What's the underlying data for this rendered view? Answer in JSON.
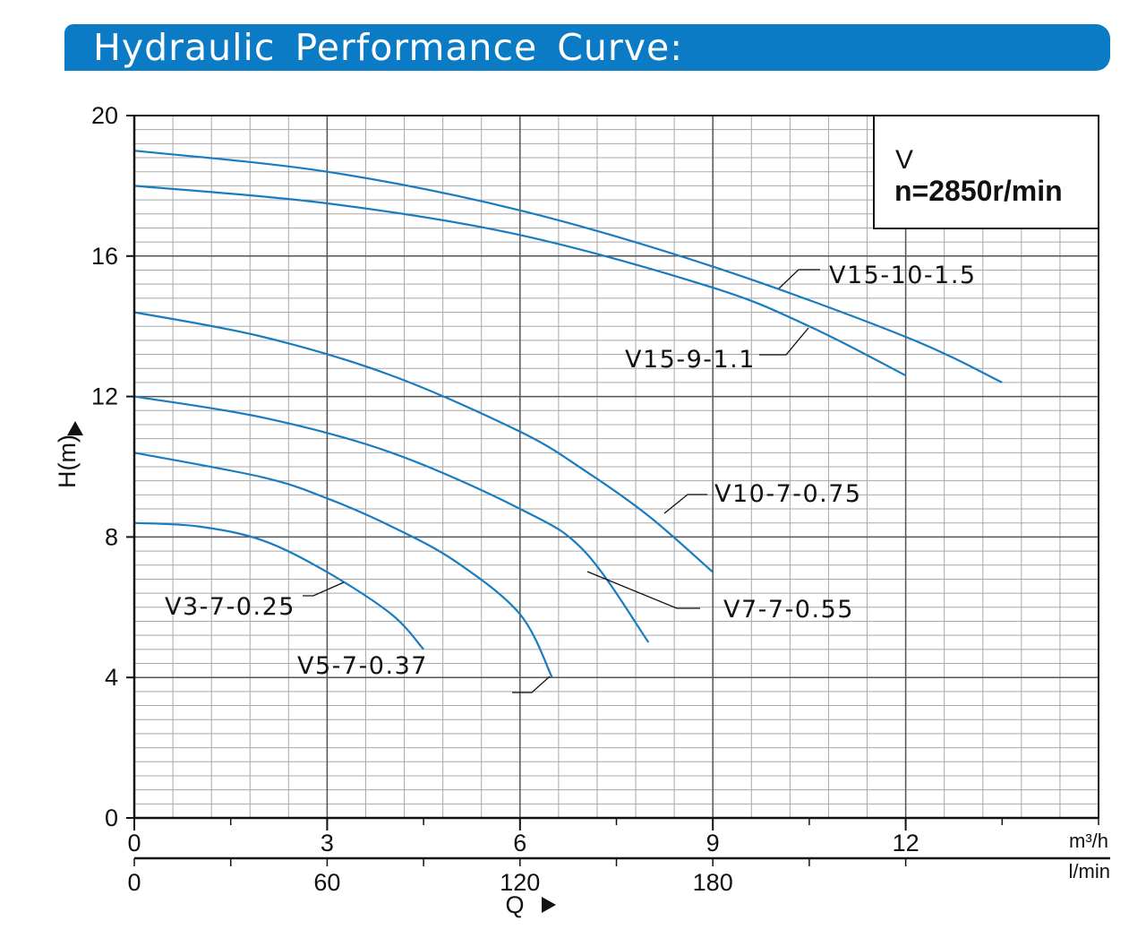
{
  "header": {
    "title": "Hydraulic Performance Curve:"
  },
  "colors": {
    "banner": "#0a7bc4",
    "curve": "#1a7cc0",
    "grid": "#9a9a9a",
    "text": "#111111"
  },
  "chart_data": {
    "type": "line",
    "ylabel": "H(m)",
    "xlabel": "Q",
    "x_unit_top": "m³/h",
    "x_unit_bottom": "l/min",
    "ylim": [
      0,
      20
    ],
    "xlim": [
      0,
      15
    ],
    "y_ticks": [
      "0",
      "4",
      "8",
      "12",
      "16",
      "20"
    ],
    "x_ticks": [
      "0",
      "3",
      "6",
      "9",
      "12"
    ],
    "x2_ticks": [
      "0",
      "60",
      "120",
      "180"
    ],
    "grid": true,
    "info_box": {
      "model": "V",
      "speed": "n=2850r/min"
    },
    "series": [
      {
        "name": "V15-10-1.5",
        "x": [
          0,
          3,
          6,
          9,
          12,
          13.5
        ],
        "y": [
          19.0,
          18.4,
          17.3,
          15.7,
          13.7,
          12.4
        ]
      },
      {
        "name": "V15-9-1.1",
        "x": [
          0,
          3,
          6,
          9,
          10.5,
          12
        ],
        "y": [
          18.0,
          17.5,
          16.6,
          15.1,
          14.0,
          12.6
        ]
      },
      {
        "name": "V10-7-0.75",
        "x": [
          0,
          2,
          4,
          6,
          7,
          8,
          9
        ],
        "y": [
          14.4,
          13.7,
          12.6,
          11.0,
          9.9,
          8.6,
          7.0
        ]
      },
      {
        "name": "V7-7-0.55",
        "x": [
          0,
          2,
          4,
          6,
          7,
          8
        ],
        "y": [
          12.0,
          11.4,
          10.4,
          8.8,
          7.6,
          5.0
        ]
      },
      {
        "name": "V5-7-0.37",
        "x": [
          0,
          2,
          3,
          4,
          5,
          6,
          6.5
        ],
        "y": [
          10.4,
          9.7,
          9.1,
          8.3,
          7.3,
          5.8,
          4.0
        ]
      },
      {
        "name": "V3-7-0.25",
        "x": [
          0,
          1,
          2,
          3,
          4,
          4.5
        ],
        "y": [
          8.4,
          8.3,
          7.9,
          7.0,
          5.8,
          4.8
        ]
      }
    ]
  }
}
